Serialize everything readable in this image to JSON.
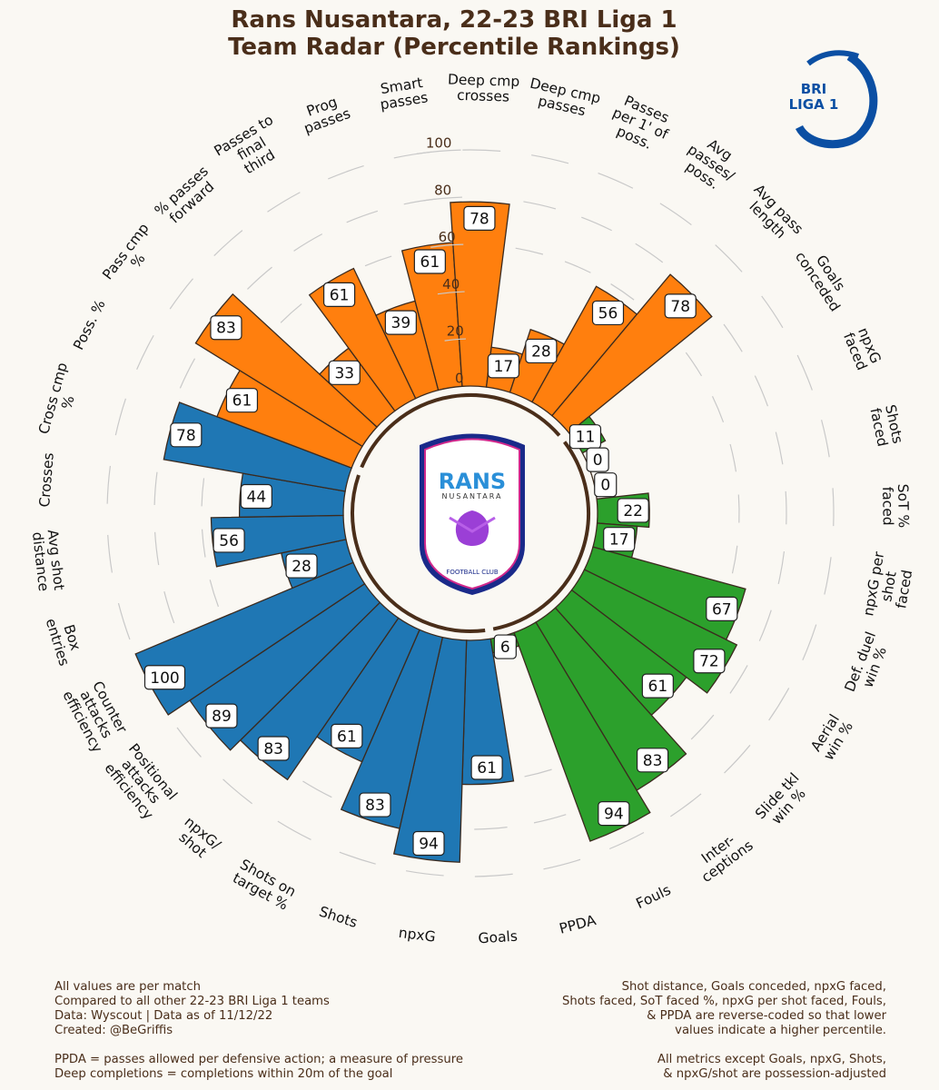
{
  "header": {
    "title_line1": "Rans Nusantara, 22-23 BRI Liga 1",
    "title_line2": "Team Radar (Percentile Rankings)"
  },
  "league_logo": {
    "line1": "BRI",
    "line2": "LIGA 1",
    "color": "#0b4fa3"
  },
  "club_logo": {
    "name": "RANS",
    "sub": "NUSANTARA",
    "footer": "FOOTBALL CLUB"
  },
  "colors": {
    "attack": "#1f77b4",
    "defense": "#2ca02c",
    "possession": "#ff7f0e",
    "edge": "#3b2a1e",
    "ring": "#4a2e1a"
  },
  "chart_data": {
    "type": "radar-bar",
    "title": "Rans Nusantara, 22-23 BRI Liga 1 Team Radar (Percentile Rankings)",
    "ylim": [
      0,
      100
    ],
    "rticks": [
      "0",
      "20",
      "40",
      "60",
      "80",
      "100"
    ],
    "metrics": [
      {
        "label": "Goals",
        "value": 61,
        "group": "attack"
      },
      {
        "label": "npxG",
        "value": 94,
        "group": "attack"
      },
      {
        "label": "Shots",
        "value": 83,
        "group": "attack"
      },
      {
        "label": "Shots on target %",
        "value": 61,
        "group": "attack"
      },
      {
        "label": "npxG/ shot",
        "value": 83,
        "group": "attack"
      },
      {
        "label": "Positional attacks efficiency",
        "value": 89,
        "group": "attack"
      },
      {
        "label": "Counter attacks efficiency",
        "value": 100,
        "group": "attack"
      },
      {
        "label": "Box entries",
        "value": 28,
        "group": "attack"
      },
      {
        "label": "Avg shot distance",
        "value": 56,
        "group": "attack"
      },
      {
        "label": "Crosses",
        "value": 44,
        "group": "attack"
      },
      {
        "label": "Cross cmp %",
        "value": 78,
        "group": "attack"
      },
      {
        "label": "Poss. %",
        "value": 61,
        "group": "possession"
      },
      {
        "label": "Pass cmp %",
        "value": 83,
        "group": "possession"
      },
      {
        "label": "% passes forward",
        "value": 33,
        "group": "possession"
      },
      {
        "label": "Passes to final third",
        "value": 61,
        "group": "possession"
      },
      {
        "label": "Prog passes",
        "value": 39,
        "group": "possession"
      },
      {
        "label": "Smart passes",
        "value": 61,
        "group": "possession"
      },
      {
        "label": "Deep cmp crosses",
        "value": 78,
        "group": "possession"
      },
      {
        "label": "Deep cmp passes",
        "value": 17,
        "group": "possession"
      },
      {
        "label": "Passes per 1' of poss.",
        "value": 28,
        "group": "possession"
      },
      {
        "label": "Avg passes/ poss.",
        "value": 56,
        "group": "possession"
      },
      {
        "label": "Avg pass length",
        "value": 78,
        "group": "possession"
      },
      {
        "label": "Goals conceded",
        "value": 11,
        "group": "defense"
      },
      {
        "label": "npxG faced",
        "value": 0,
        "group": "defense"
      },
      {
        "label": "Shots faced",
        "value": 0,
        "group": "defense"
      },
      {
        "label": "SoT % faced",
        "value": 22,
        "group": "defense"
      },
      {
        "label": "npxG per shot faced",
        "value": 17,
        "group": "defense"
      },
      {
        "label": "Def. duel win %",
        "value": 67,
        "group": "defense"
      },
      {
        "label": "Aerial win %",
        "value": 72,
        "group": "defense"
      },
      {
        "label": "Slide tkl win %",
        "value": 61,
        "group": "defense"
      },
      {
        "label": "Inter- ceptions",
        "value": 83,
        "group": "defense"
      },
      {
        "label": "Fouls",
        "value": 94,
        "group": "defense"
      },
      {
        "label": "PPDA",
        "value": 6,
        "group": "defense"
      }
    ]
  },
  "footer": {
    "left": [
      "All values are per match",
      "Compared to all other 22-23 BRI Liga 1 teams",
      "Data: Wyscout | Data as of 11/12/22",
      "Created: @BeGriffis",
      "",
      "PPDA = passes allowed per defensive action; a measure of pressure",
      "Deep completions = completions within 20m of the goal"
    ],
    "right": [
      "Shot distance, Goals conceded, npxG faced,",
      "Shots faced, SoT faced %, npxG per shot faced, Fouls,",
      "& PPDA are reverse-coded so that lower",
      "values indicate a higher percentile.",
      "",
      "All metrics except Goals, npxG, Shots,",
      "& npxG/shot are possession-adjusted"
    ]
  }
}
